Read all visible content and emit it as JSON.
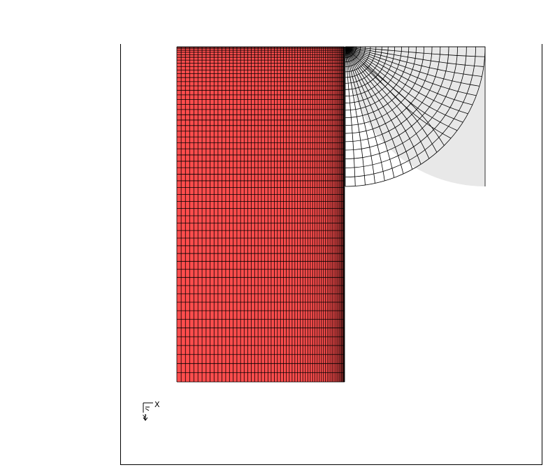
{
  "triad": {
    "x_label": "X",
    "y_label": "Y"
  }
}
